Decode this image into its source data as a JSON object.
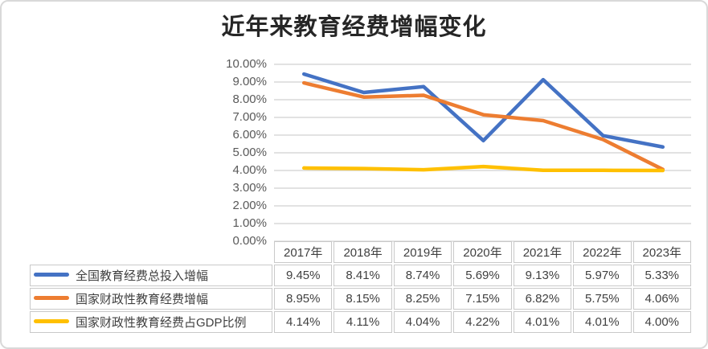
{
  "chart_data": {
    "type": "line",
    "title": "近年来教育经费增幅变化",
    "categories": [
      "2017年",
      "2018年",
      "2019年",
      "2020年",
      "2021年",
      "2022年",
      "2023年"
    ],
    "series": [
      {
        "name": "全国教育经费总投入增幅",
        "color": "#4472C4",
        "values": [
          9.45,
          8.41,
          8.74,
          5.69,
          9.13,
          5.97,
          5.33
        ]
      },
      {
        "name": "国家财政性教育经费增幅",
        "color": "#ED7D31",
        "values": [
          8.95,
          8.15,
          8.25,
          7.15,
          6.82,
          5.75,
          4.06
        ]
      },
      {
        "name": "国家财政性教育经费占GDP比例",
        "color": "#FFC000",
        "values": [
          4.14,
          4.11,
          4.04,
          4.22,
          4.01,
          4.01,
          4.0
        ]
      }
    ],
    "value_format": "percent_2dp",
    "y_axis": {
      "min": 0,
      "max": 10,
      "step": 1,
      "tick_labels": [
        "0.00%",
        "1.00%",
        "2.00%",
        "3.00%",
        "4.00%",
        "5.00%",
        "6.00%",
        "7.00%",
        "8.00%",
        "9.00%",
        "10.00%"
      ]
    },
    "grid": true,
    "legend_position": "data-table-left"
  },
  "colors": {
    "gridline": "#D9D9D9",
    "frame_border": "#D9D9D9",
    "axis_text": "#595959",
    "table_text": "#404040",
    "table_border": "#C9C9C9",
    "title_text": "#262626"
  }
}
